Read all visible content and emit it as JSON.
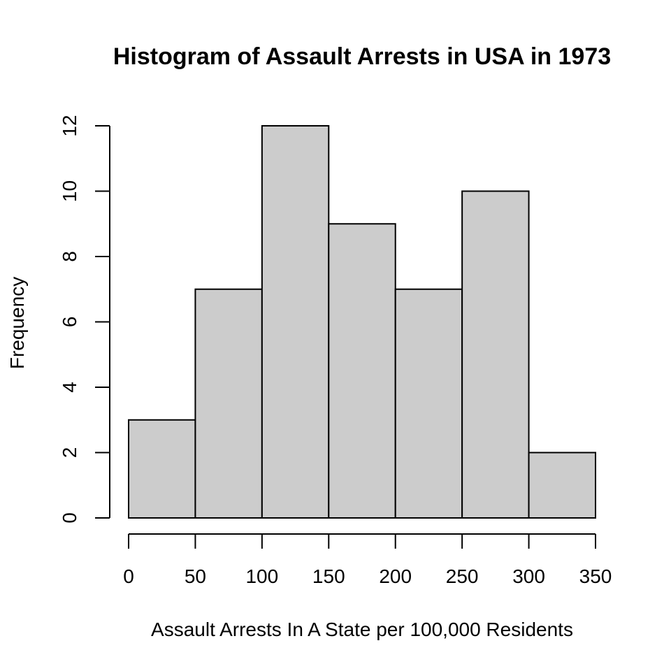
{
  "chart_data": {
    "type": "bar",
    "title": "Histogram of Assault Arrests in USA in 1973",
    "xlabel": "Assault Arrests In A State per 100,000 Residents",
    "ylabel": "Frequency",
    "bins": [
      {
        "from": 0,
        "to": 50,
        "count": 3
      },
      {
        "from": 50,
        "to": 100,
        "count": 7
      },
      {
        "from": 100,
        "to": 150,
        "count": 12
      },
      {
        "from": 150,
        "to": 200,
        "count": 9
      },
      {
        "from": 200,
        "to": 250,
        "count": 7
      },
      {
        "from": 250,
        "to": 300,
        "count": 10
      },
      {
        "from": 300,
        "to": 350,
        "count": 2
      }
    ],
    "xlim": [
      0,
      350
    ],
    "ylim": [
      0,
      12
    ],
    "x_ticks": [
      "0",
      "50",
      "100",
      "150",
      "200",
      "250",
      "300",
      "350"
    ],
    "y_ticks": [
      "0",
      "2",
      "4",
      "6",
      "8",
      "10",
      "12"
    ],
    "bar_color": "#cccccc",
    "grid": false,
    "legend": "none"
  }
}
